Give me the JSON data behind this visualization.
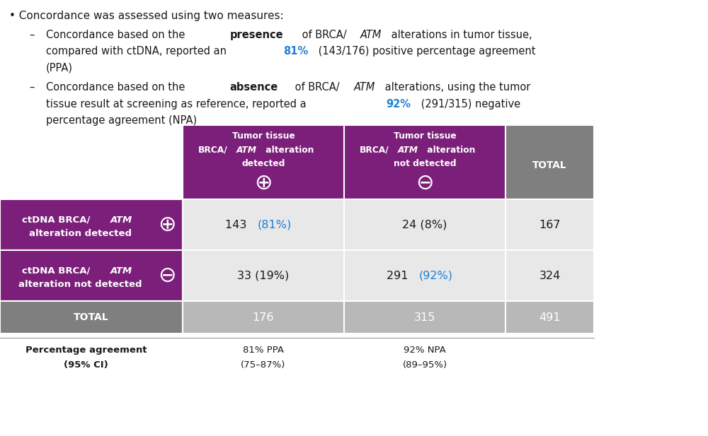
{
  "bg_color": "#ffffff",
  "C_PURPLE": "#7B1F7A",
  "C_GRAY_HDR": "#7F7F7F",
  "C_LGRAY": "#B8B8B8",
  "C_LLGRAY": "#E8E8E8",
  "C_WHITE": "#FFFFFF",
  "C_BLACK": "#1A1A1A",
  "C_BLUE": "#1E7FD8",
  "bullet_line": "Concordance was assessed using two measures:",
  "sub1_parts": [
    [
      "Concordance based on the ",
      "normal",
      "normal"
    ],
    [
      "presence",
      "bold",
      "normal"
    ],
    [
      " of BRCA/",
      "normal",
      "normal"
    ],
    [
      "ATM",
      "normal",
      "italic"
    ],
    [
      " alterations in tumor tissue,",
      "normal",
      "normal"
    ]
  ],
  "sub1_line2_parts": [
    [
      "compared with ctDNA, reported an ",
      "normal",
      "normal",
      "black"
    ],
    [
      "81%",
      "bold",
      "normal",
      "blue"
    ],
    [
      " (143/176) positive percentage agreement",
      "normal",
      "normal",
      "black"
    ]
  ],
  "sub1_line3": "(PPA)",
  "sub2_parts": [
    [
      "Concordance based on the ",
      "normal",
      "normal"
    ],
    [
      "absence",
      "bold",
      "normal"
    ],
    [
      " of BRCA/",
      "normal",
      "normal"
    ],
    [
      "ATM",
      "normal",
      "italic"
    ],
    [
      " alterations, using the tumor",
      "normal",
      "normal"
    ]
  ],
  "sub2_line2_parts": [
    [
      "tissue result at screening as reference, reported a ",
      "normal",
      "normal",
      "black"
    ],
    [
      "92%",
      "bold",
      "normal",
      "blue"
    ],
    [
      " (291/315) negative",
      "normal",
      "normal",
      "black"
    ]
  ],
  "sub2_line3": "percentage agreement (NPA)",
  "col1_hdr_line1": "Tumor tissue",
  "col1_hdr_line2_parts": [
    [
      "BRCA/",
      "bold",
      "normal"
    ],
    [
      "ATM",
      "bold",
      "italic"
    ],
    [
      " alteration",
      "bold",
      "normal"
    ]
  ],
  "col1_hdr_line3": "detected",
  "col1_hdr_sym": "⊕",
  "col2_hdr_line1": "Tumor tissue",
  "col2_hdr_line2_parts": [
    [
      "BRCA/",
      "bold",
      "normal"
    ],
    [
      "ATM",
      "bold",
      "italic"
    ],
    [
      " alteration",
      "bold",
      "normal"
    ]
  ],
  "col2_hdr_line3": "not detected",
  "col2_hdr_sym": "⊖",
  "col3_hdr": "TOTAL",
  "row1_lbl_line1_parts": [
    [
      "ctDNA BRCA/",
      "bold",
      "normal"
    ],
    [
      "ATM",
      "bold",
      "italic"
    ]
  ],
  "row1_lbl_line2": "alteration detected",
  "row1_sym": "⊕",
  "row1_c1_parts": [
    [
      "143 ",
      "normal",
      "normal",
      "black"
    ],
    [
      "(81%)",
      "normal",
      "normal",
      "blue"
    ]
  ],
  "row1_c2": "24 (8%)",
  "row1_c3": "167",
  "row2_lbl_line1_parts": [
    [
      "ctDNA BRCA/",
      "bold",
      "normal"
    ],
    [
      "ATM",
      "bold",
      "italic"
    ]
  ],
  "row2_lbl_line2": "alteration not detected",
  "row2_sym": "⊖",
  "row2_c1": "33 (19%)",
  "row2_c2_parts": [
    [
      "291 ",
      "normal",
      "normal",
      "black"
    ],
    [
      "(92%)",
      "normal",
      "normal",
      "blue"
    ]
  ],
  "row2_c3": "324",
  "row3_lbl": "TOTAL",
  "row3_c1": "176",
  "row3_c2": "315",
  "row3_c3": "491",
  "footer_lbl1": "Percentage agreement",
  "footer_lbl2": "(95% CI)",
  "footer_c1_l1": "81% PPA",
  "footer_c1_l2": "(75–87%)",
  "footer_c2_l1": "92% NPA",
  "footer_c2_l2": "(89–95%)"
}
